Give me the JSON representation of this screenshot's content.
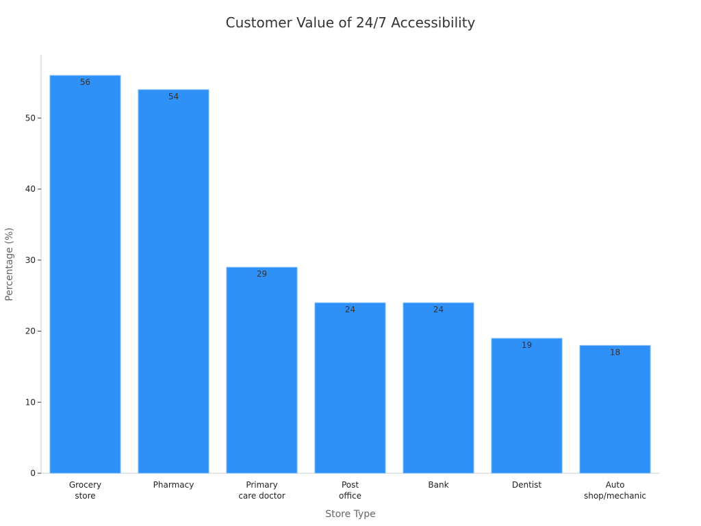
{
  "chart_data": {
    "type": "bar",
    "title": "Customer Value of 24/7 Accessibility",
    "x_label": "Store Type",
    "y_label": "Percentage (%)",
    "categories": [
      "Grocery\nstore",
      "Pharmacy",
      "Primary\ncare doctor",
      "Post\noffice",
      "Bank",
      "Dentist",
      "Auto\nshop/mechanic"
    ],
    "values": [
      56,
      54,
      29,
      24,
      24,
      19,
      18
    ],
    "color": "#2f91f7",
    "ylim": [
      0,
      58.9
    ],
    "yticks": [
      0,
      10,
      20,
      30,
      40,
      50
    ],
    "grid": false
  }
}
